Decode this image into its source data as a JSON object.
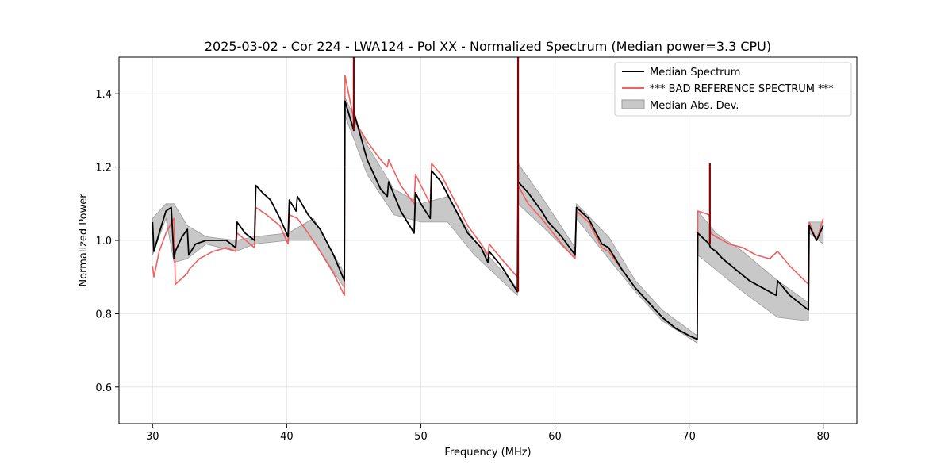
{
  "chart_data": {
    "type": "line",
    "title": "2025-03-02 - Cor 224 - LWA124 - Pol XX - Normalized Spectrum (Median power=3.3 CPU)",
    "xlabel": "Frequency (MHz)",
    "ylabel": "Normalized Power",
    "xlim": [
      27.5,
      82.5
    ],
    "ylim": [
      0.5,
      1.5
    ],
    "xticks": [
      30,
      40,
      50,
      60,
      70,
      80
    ],
    "yticks": [
      0.6,
      0.8,
      1.0,
      1.2,
      1.4
    ],
    "xtick_labels": [
      "30",
      "40",
      "50",
      "60",
      "70",
      "80"
    ],
    "ytick_labels": [
      "0.6",
      "0.8",
      "1.0",
      "1.2",
      "1.4"
    ],
    "grid": true,
    "legend_position": "top-right",
    "colors": {
      "median": "#000000",
      "reference": "#f06060",
      "mad_fill": "#c8c8c8",
      "mad_edge": "#9a9a9a",
      "spike": "#8b0000"
    },
    "series": [
      {
        "name": "Median Spectrum",
        "role": "median",
        "x": [
          30.0,
          30.1,
          30.5,
          31.0,
          31.4,
          31.6,
          31.7,
          32.2,
          32.6,
          32.7,
          33.2,
          34.0,
          35.0,
          35.5,
          36.2,
          36.3,
          36.9,
          37.6,
          37.7,
          38.2,
          38.8,
          39.5,
          40.1,
          40.2,
          40.7,
          40.8,
          41.6,
          42.5,
          43.5,
          44.3,
          44.35,
          45.0,
          45.01,
          46.0,
          47.0,
          47.5,
          47.6,
          48.5,
          49.0,
          49.5,
          49.6,
          50.0,
          50.7,
          50.8,
          51.5,
          52.5,
          53.5,
          54.5,
          55.0,
          55.1,
          56.0,
          57.2,
          57.25,
          58.0,
          59.0,
          59.5,
          60.5,
          61.5,
          61.6,
          62.5,
          63.5,
          64.0,
          65.0,
          66.0,
          67.0,
          68.0,
          69.0,
          70.0,
          70.6,
          70.65,
          71.5,
          71.6,
          72.0,
          72.5,
          73.5,
          74.5,
          75.5,
          76.5,
          76.6,
          77.5,
          78.9,
          78.95,
          79.5,
          80.0
        ],
        "y": [
          1.05,
          0.97,
          1.02,
          1.08,
          1.09,
          0.95,
          0.97,
          1.01,
          1.03,
          0.96,
          0.99,
          1.0,
          1.0,
          1.0,
          0.98,
          1.05,
          1.02,
          1.0,
          1.15,
          1.13,
          1.11,
          1.06,
          1.01,
          1.11,
          1.08,
          1.12,
          1.07,
          1.03,
          0.96,
          0.89,
          1.38,
          1.3,
          1.35,
          1.22,
          1.14,
          1.12,
          1.16,
          1.08,
          1.05,
          1.02,
          1.13,
          1.1,
          1.06,
          1.19,
          1.16,
          1.09,
          1.02,
          0.98,
          0.94,
          0.97,
          0.93,
          0.86,
          1.16,
          1.13,
          1.08,
          1.05,
          1.01,
          0.96,
          1.09,
          1.06,
          0.99,
          0.98,
          0.92,
          0.87,
          0.83,
          0.79,
          0.76,
          0.74,
          0.73,
          1.02,
          0.99,
          0.98,
          0.97,
          0.95,
          0.92,
          0.89,
          0.87,
          0.85,
          0.89,
          0.85,
          0.81,
          1.04,
          1.0,
          1.04
        ]
      },
      {
        "name": "*** BAD REFERENCE SPECTRUM ***",
        "role": "reference",
        "x": [
          30.0,
          30.1,
          30.5,
          31.0,
          31.6,
          31.7,
          32.6,
          32.7,
          33.5,
          34.5,
          35.5,
          36.2,
          36.3,
          37.6,
          37.7,
          38.5,
          39.5,
          40.1,
          40.2,
          40.8,
          41.6,
          42.5,
          43.5,
          44.3,
          44.35,
          45.0,
          46.0,
          47.0,
          47.5,
          47.6,
          48.5,
          49.5,
          49.6,
          50.0,
          50.7,
          50.8,
          51.5,
          52.5,
          53.5,
          54.5,
          55.0,
          55.1,
          56.0,
          57.2,
          57.25,
          58.0,
          59.0,
          60.5,
          61.5,
          61.6,
          62.5,
          63.5,
          64.0,
          65.0,
          66.0,
          67.0,
          68.0,
          69.0,
          70.0,
          70.6,
          70.65,
          71.5,
          71.6,
          72.0,
          73.0,
          74.0,
          75.0,
          76.0,
          76.6,
          77.5,
          78.9,
          78.95,
          79.5,
          80.0
        ],
        "y": [
          0.93,
          0.9,
          0.97,
          1.02,
          1.06,
          0.88,
          0.91,
          0.92,
          0.95,
          0.97,
          0.98,
          0.97,
          1.02,
          0.98,
          1.09,
          1.07,
          1.04,
          0.99,
          1.07,
          1.06,
          1.02,
          0.97,
          0.91,
          0.85,
          1.45,
          1.33,
          1.27,
          1.22,
          1.2,
          1.22,
          1.15,
          1.1,
          1.18,
          1.15,
          1.1,
          1.21,
          1.18,
          1.11,
          1.04,
          0.99,
          0.96,
          0.99,
          0.95,
          0.9,
          1.15,
          1.1,
          1.06,
          0.99,
          0.95,
          1.08,
          1.05,
          0.98,
          0.97,
          0.92,
          0.87,
          0.83,
          0.79,
          0.76,
          0.74,
          0.73,
          1.08,
          1.07,
          1.02,
          1.01,
          0.99,
          0.98,
          0.96,
          0.95,
          0.97,
          0.93,
          0.88,
          1.05,
          1.0,
          1.06
        ]
      }
    ],
    "mad_band": {
      "name": "Median Abs. Dev.",
      "x": [
        30.0,
        31.0,
        31.6,
        32.6,
        34.0,
        36.2,
        37.6,
        40.1,
        42.0,
        44.3,
        44.35,
        46.0,
        48.0,
        50.0,
        52.0,
        54.0,
        57.2,
        57.25,
        59.0,
        61.5,
        61.6,
        64.0,
        66.0,
        68.0,
        70.6,
        70.65,
        72.0,
        74.0,
        76.6,
        78.9,
        78.95,
        80.0
      ],
      "lower": [
        0.96,
        1.06,
        0.94,
        0.95,
        0.99,
        0.97,
        0.99,
        1.0,
        1.0,
        0.87,
        1.34,
        1.18,
        1.07,
        1.05,
        1.05,
        0.96,
        0.85,
        1.1,
        1.04,
        0.95,
        1.06,
        0.95,
        0.86,
        0.78,
        0.72,
        0.96,
        0.92,
        0.86,
        0.79,
        0.78,
        1.02,
        0.99
      ],
      "upper": [
        1.06,
        1.1,
        1.1,
        1.04,
        1.01,
        1.0,
        1.01,
        1.02,
        1.06,
        0.91,
        1.39,
        1.26,
        1.14,
        1.1,
        1.12,
        1.0,
        0.87,
        1.21,
        1.12,
        0.98,
        1.1,
        1.01,
        0.89,
        0.81,
        0.74,
        1.08,
        1.02,
        0.97,
        0.89,
        0.83,
        1.05,
        1.05
      ]
    },
    "spikes": [
      {
        "x": 45.0,
        "y_from": 1.3,
        "y_to": 1.5
      },
      {
        "x": 57.25,
        "y_from": 0.86,
        "y_to": 1.5
      },
      {
        "x": 71.55,
        "y_from": 0.99,
        "y_to": 1.21
      }
    ]
  }
}
